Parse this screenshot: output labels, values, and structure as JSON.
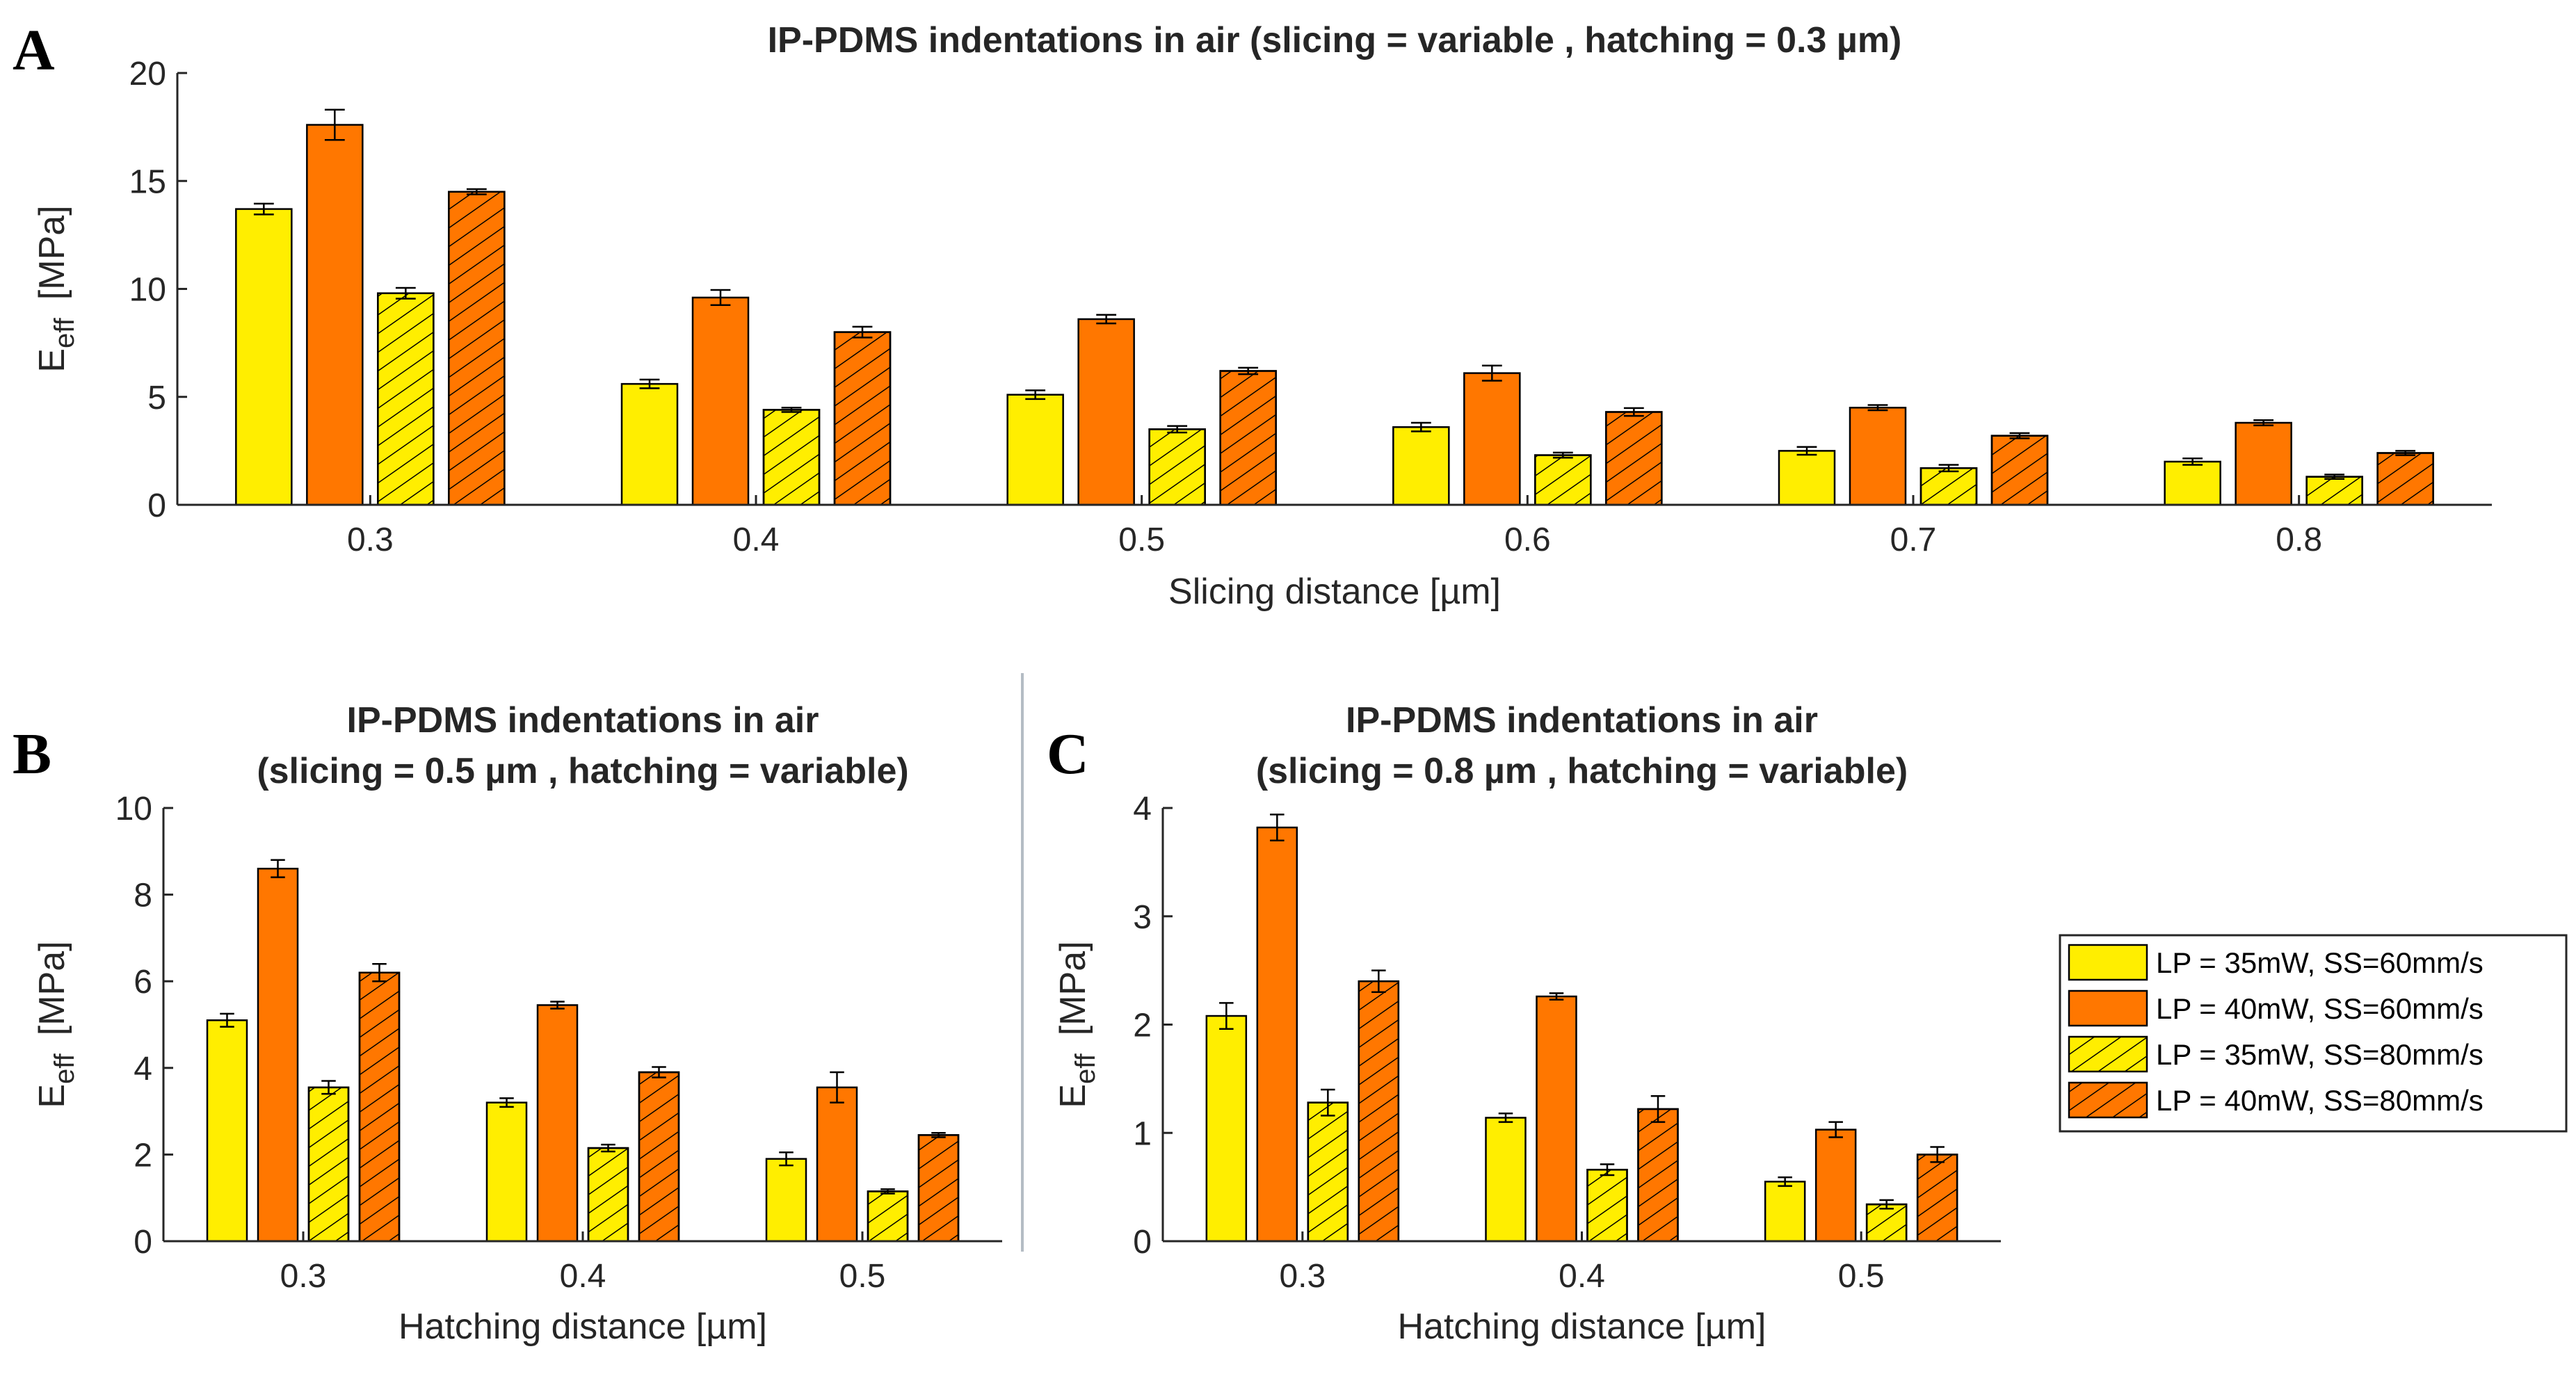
{
  "colors": {
    "lp35": "#ffee00",
    "lp40": "#ff7700",
    "axis": "#262626",
    "hatch": "#000000",
    "divider": "#b4bcc4"
  },
  "legend": {
    "entries": [
      {
        "label": "LP = 35mW, SS=60mm/s",
        "color": "lp35",
        "hatched": false
      },
      {
        "label": "LP = 40mW, SS=60mm/s",
        "color": "lp40",
        "hatched": false
      },
      {
        "label": "LP = 35mW, SS=80mm/s",
        "color": "lp35",
        "hatched": true
      },
      {
        "label": "LP = 40mW, SS=80mm/s",
        "color": "lp40",
        "hatched": true
      }
    ]
  },
  "chart_data": [
    {
      "panel": "A",
      "type": "bar",
      "title": "IP-PDMS indentations in air (slicing = variable , hatching = 0.3 µm)",
      "xlabel": "Slicing distance [µm]",
      "ylabel_main": "E",
      "ylabel_sub": "eff",
      "ylabel_unit": "[MPa]",
      "ylim": [
        0,
        20
      ],
      "yticks": [
        0,
        5,
        10,
        15,
        20
      ],
      "categories": [
        "0.3",
        "0.4",
        "0.5",
        "0.6",
        "0.7",
        "0.8"
      ],
      "series": [
        {
          "name": "LP = 35mW, SS=60mm/s",
          "values": [
            13.7,
            5.6,
            5.1,
            3.6,
            2.5,
            2.0
          ],
          "errors": [
            0.25,
            0.2,
            0.2,
            0.2,
            0.18,
            0.15
          ]
        },
        {
          "name": "LP = 40mW, SS=60mm/s",
          "values": [
            17.6,
            9.6,
            8.6,
            6.1,
            4.5,
            3.8
          ],
          "errors": [
            0.7,
            0.35,
            0.2,
            0.35,
            0.12,
            0.12
          ]
        },
        {
          "name": "LP = 35mW, SS=80mm/s",
          "values": [
            9.8,
            4.4,
            3.5,
            2.3,
            1.7,
            1.3
          ],
          "errors": [
            0.25,
            0.1,
            0.15,
            0.12,
            0.15,
            0.1
          ]
        },
        {
          "name": "LP = 40mW, SS=80mm/s",
          "values": [
            14.5,
            8.0,
            6.2,
            4.3,
            3.2,
            2.4
          ],
          "errors": [
            0.12,
            0.25,
            0.15,
            0.18,
            0.12,
            0.1
          ]
        }
      ]
    },
    {
      "panel": "B",
      "type": "bar",
      "title_line1": "IP-PDMS indentations in air",
      "title_line2": "(slicing = 0.5 µm , hatching = variable)",
      "xlabel": "Hatching distance [µm]",
      "ylabel_main": "E",
      "ylabel_sub": "eff",
      "ylabel_unit": "[MPa]",
      "ylim": [
        0,
        10
      ],
      "yticks": [
        0,
        2,
        4,
        6,
        8,
        10
      ],
      "categories": [
        "0.3",
        "0.4",
        "0.5"
      ],
      "series": [
        {
          "name": "LP = 35mW, SS=60mm/s",
          "values": [
            5.1,
            3.2,
            1.9
          ],
          "errors": [
            0.15,
            0.1,
            0.15
          ]
        },
        {
          "name": "LP = 40mW, SS=60mm/s",
          "values": [
            8.6,
            5.45,
            3.55
          ],
          "errors": [
            0.2,
            0.08,
            0.35
          ]
        },
        {
          "name": "LP = 35mW, SS=80mm/s",
          "values": [
            3.55,
            2.15,
            1.15
          ],
          "errors": [
            0.15,
            0.08,
            0.05
          ]
        },
        {
          "name": "LP = 40mW, SS=80mm/s",
          "values": [
            6.2,
            3.9,
            2.45
          ],
          "errors": [
            0.2,
            0.12,
            0.05
          ]
        }
      ]
    },
    {
      "panel": "C",
      "type": "bar",
      "title_line1": "IP-PDMS indentations in air",
      "title_line2": "(slicing = 0.8 µm , hatching = variable)",
      "xlabel": "Hatching distance [µm]",
      "ylabel_main": "E",
      "ylabel_sub": "eff",
      "ylabel_unit": "[MPa]",
      "ylim": [
        0,
        4
      ],
      "yticks": [
        0,
        1,
        2,
        3,
        4
      ],
      "categories": [
        "0.3",
        "0.4",
        "0.5"
      ],
      "series": [
        {
          "name": "LP = 35mW, SS=60mm/s",
          "values": [
            2.08,
            1.14,
            0.55
          ],
          "errors": [
            0.12,
            0.04,
            0.04
          ]
        },
        {
          "name": "LP = 40mW, SS=60mm/s",
          "values": [
            3.82,
            2.26,
            1.03
          ],
          "errors": [
            0.12,
            0.03,
            0.07
          ]
        },
        {
          "name": "LP = 35mW, SS=80mm/s",
          "values": [
            1.28,
            0.66,
            0.34
          ],
          "errors": [
            0.12,
            0.05,
            0.04
          ]
        },
        {
          "name": "LP = 40mW, SS=80mm/s",
          "values": [
            2.4,
            1.22,
            0.8
          ],
          "errors": [
            0.1,
            0.12,
            0.07
          ]
        }
      ]
    }
  ]
}
